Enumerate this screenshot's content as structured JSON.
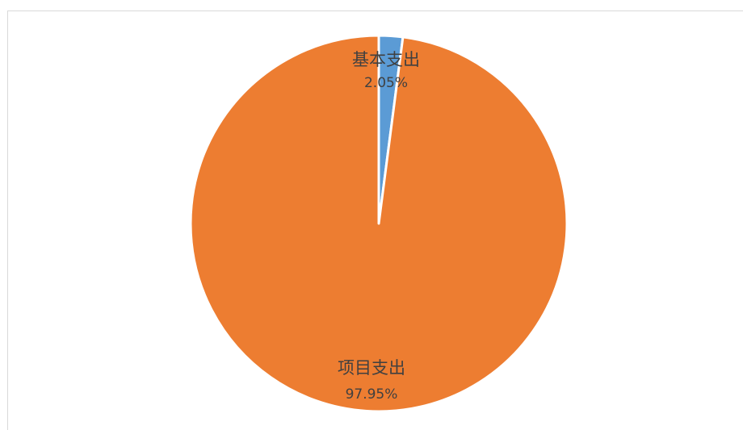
{
  "chart_data": {
    "type": "pie",
    "title": "",
    "legend": "none",
    "slices": [
      {
        "label": "基本支出",
        "value": 2.05,
        "display": "2.05%",
        "color": "#5B9BD5"
      },
      {
        "label": "项目支出",
        "value": 97.95,
        "display": "97.95%",
        "color": "#ED7D31"
      }
    ]
  }
}
